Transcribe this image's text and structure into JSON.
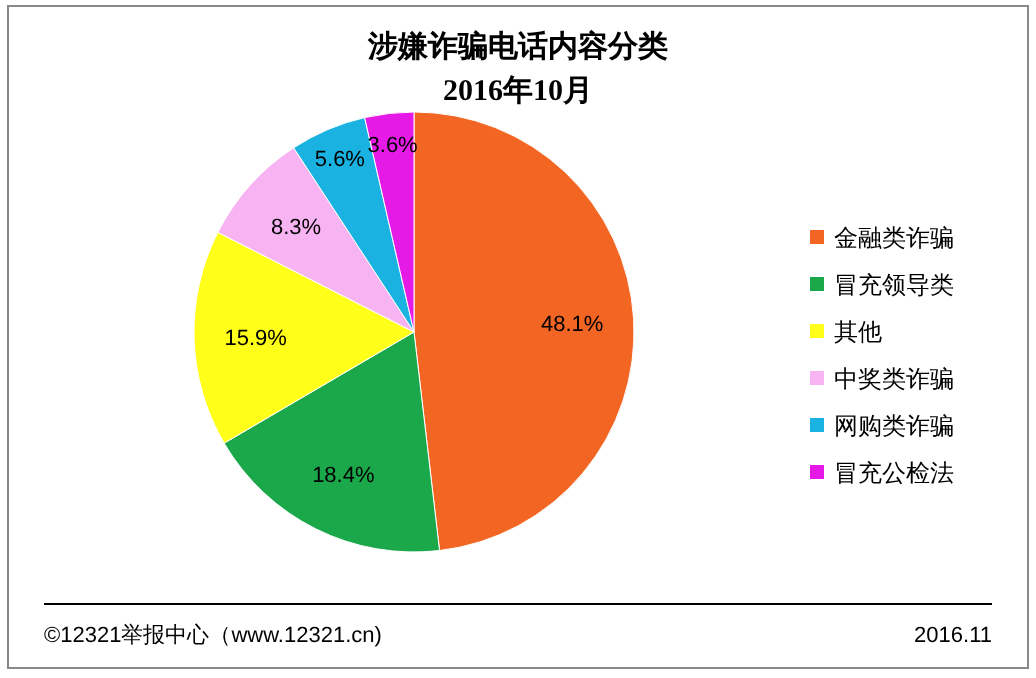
{
  "chart_data": {
    "type": "pie",
    "title": "涉嫌诈骗电话内容分类",
    "subtitle": "2016年10月",
    "categories": [
      "金融类诈骗",
      "冒充领导类",
      "其他",
      "中奖类诈骗",
      "网购类诈骗",
      "冒充公检法"
    ],
    "values": [
      48.1,
      18.4,
      15.9,
      8.3,
      5.6,
      3.6
    ],
    "colors": [
      "#f26522",
      "#1ba84b",
      "#ffff1a",
      "#f7b3f2",
      "#1ab2e0",
      "#e61ae6"
    ],
    "value_labels": [
      "48.1%",
      "18.4%",
      "15.9%",
      "8.3%",
      "5.6%",
      "3.6%"
    ],
    "legend": "right",
    "annotations": [
      "©12321举报中心（www.12321.cn)",
      "2016.11"
    ]
  }
}
